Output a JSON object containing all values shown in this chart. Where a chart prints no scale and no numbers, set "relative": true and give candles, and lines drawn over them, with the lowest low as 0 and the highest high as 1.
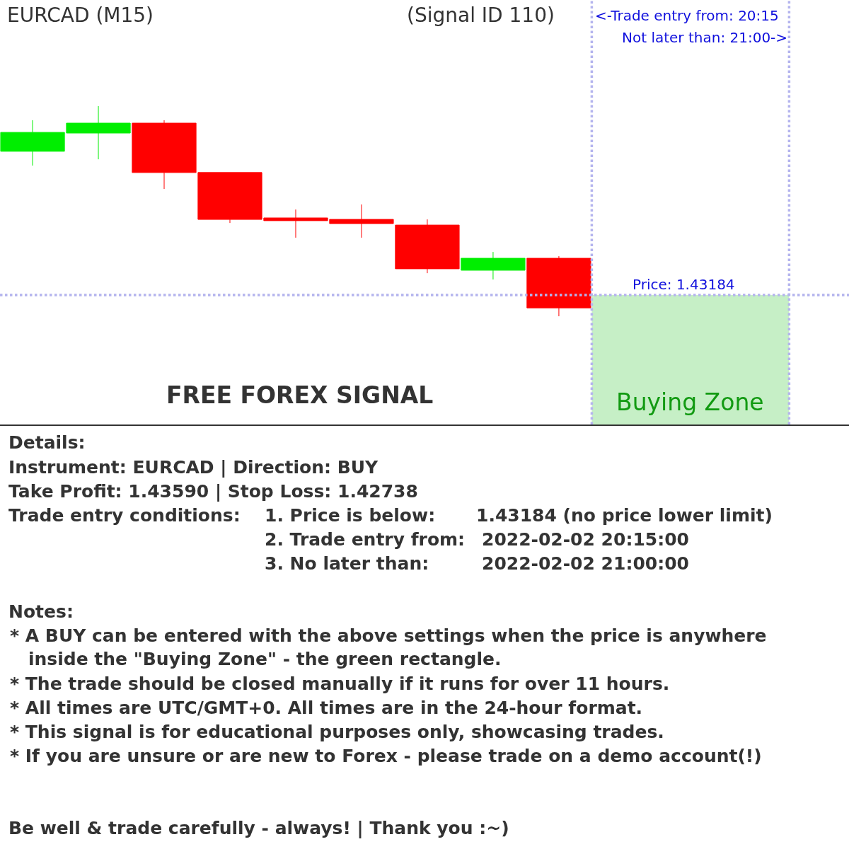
{
  "chart_data": {
    "type": "candlestick",
    "title": "EURCAD (M15)",
    "subtitle": "(Signal ID 110)",
    "relative": true,
    "categories": [
      null,
      null,
      null,
      null,
      null,
      null,
      null,
      null,
      null
    ],
    "ohlc": [
      [
        0.785,
        0.933,
        0.717,
        0.875
      ],
      [
        0.872,
        1.0,
        0.747,
        0.919
      ],
      [
        0.919,
        0.933,
        0.606,
        0.684
      ],
      [
        0.684,
        0.684,
        0.444,
        0.461
      ],
      [
        0.468,
        0.508,
        0.374,
        0.455
      ],
      [
        0.461,
        0.532,
        0.374,
        0.441
      ],
      [
        0.434,
        0.461,
        0.205,
        0.226
      ],
      [
        0.219,
        0.306,
        0.175,
        0.276
      ],
      [
        0.276,
        0.286,
        0.0,
        0.04
      ]
    ],
    "colors": [
      "#00ee00",
      "#00ee00",
      "#ff0000",
      "#ff0000",
      "#ff0000",
      "#ff0000",
      "#ff0000",
      "#00ee00",
      "#ff0000"
    ],
    "ref_lines": [
      {
        "axis": "y",
        "value": 0.101,
        "color": "#b4b4ee",
        "line_style": "dotted"
      }
    ],
    "annotations": [
      "<-Trade entry from: 20:15",
      "Not later than: 21:00->",
      "Price: 1.43184",
      "FREE FOREX SIGNAL",
      "Buying Zone",
      "Details:",
      "Instrument: EURCAD | Direction: BUY",
      "Take Profit: 1.43590 | Stop Loss: 1.42738",
      "Trade entry conditions:",
      "1. Price is below:",
      "1.43184 (no price lower limit)",
      "2. Trade entry from:",
      "2022-02-02 20:15:00",
      "3. No later than:",
      "2022-02-02 21:00:00",
      "Notes:",
      "* A BUY can be entered with the above settings when the price is anywhere",
      "inside the \"Buying Zone\" - the green rectangle.",
      "* The trade should be closed manually if it runs for over 11 hours.",
      "* All times are UTC/GMT+0. All times are in the 24-hour format.",
      "* This signal is for educational purposes only, showcasing trades.",
      "* If you are unsure or are new to Forex - please trade on a demo account(!)",
      "Be well & trade carefully - always! | Thank you :~)"
    ]
  }
}
